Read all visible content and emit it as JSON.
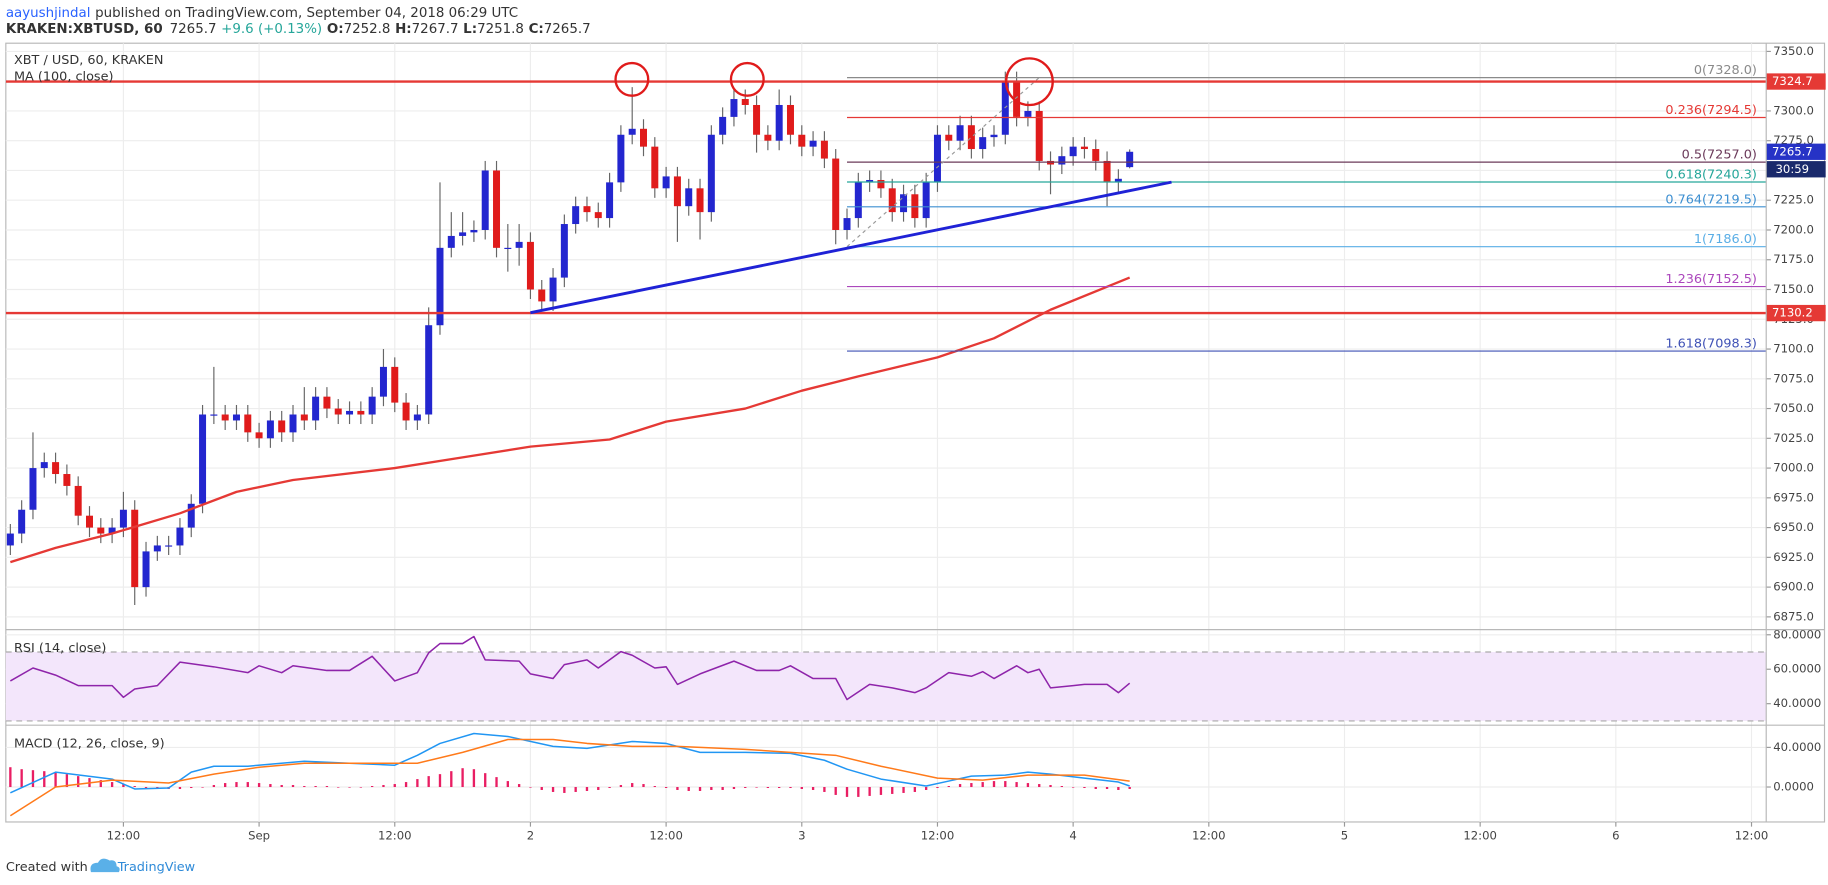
{
  "header": {
    "author": "aayushjindal",
    "published": "published on TradingView.com, September 04, 2018 06:29 UTC",
    "symbol": "KRAKEN:XBTUSD, 60",
    "change": "+9.6 (+0.13%)",
    "ohlc_labels": [
      "O:",
      "H:",
      "L:",
      "C:"
    ]
  },
  "footer": {
    "created": "Created with",
    "brand": "TradingView"
  },
  "chart_data": [
    {
      "type": "candlestick",
      "title": "XBT / USD, 60, KRAKEN",
      "up_color": "#2326cf",
      "down_color": "#e01b1b",
      "wick_color": "#666666",
      "grid": true,
      "x": [
        -22,
        -21,
        -20,
        -19,
        -18,
        -17,
        -16,
        -15,
        -14,
        -13,
        -12,
        -11,
        -10,
        -9,
        -8,
        -7,
        -6,
        -5,
        -4,
        -3,
        -2,
        -1,
        0,
        1,
        2,
        3,
        4,
        5,
        6,
        7,
        8,
        9,
        10,
        11,
        12,
        13,
        14,
        15,
        16,
        17,
        18,
        19,
        20,
        21,
        22,
        23,
        24,
        25,
        26,
        27,
        28,
        29,
        30,
        31,
        32,
        33,
        34,
        35,
        36,
        37,
        38,
        39,
        40,
        41,
        42,
        43,
        44,
        45,
        46,
        47,
        48,
        49,
        50,
        51,
        52,
        53,
        54,
        55,
        56,
        57,
        58,
        59,
        60,
        61,
        62,
        63,
        64,
        65,
        66,
        67,
        68,
        69,
        70,
        71,
        72,
        73,
        74,
        75,
        76,
        77
      ],
      "open": [
        6935,
        6945,
        6965,
        7000,
        7005,
        6995,
        6985,
        6960,
        6950,
        6945,
        6950,
        6965,
        6900,
        6930,
        6935,
        6935,
        6950,
        6970,
        7045,
        7045,
        7040,
        7045,
        7030,
        7025,
        7040,
        7030,
        7045,
        7040,
        7060,
        7050,
        7045,
        7048,
        7045,
        7060,
        7085,
        7055,
        7040,
        7045,
        7120,
        7185,
        7195,
        7198,
        7200,
        7250,
        7185,
        7185,
        7190,
        7150,
        7140,
        7160,
        7205,
        7220,
        7215,
        7210,
        7240,
        7280,
        7285,
        7270,
        7235,
        7245,
        7220,
        7235,
        7215,
        7280,
        7295,
        7310,
        7305,
        7280,
        7275,
        7305,
        7280,
        7270,
        7275,
        7260,
        7200,
        7210,
        7240,
        7242,
        7235,
        7215,
        7230,
        7210,
        7240,
        7280,
        7275,
        7288,
        7268,
        7278,
        7280,
        7325,
        7295,
        7300,
        7258,
        7255,
        7262,
        7270,
        7268,
        7258,
        7240,
        7252.8
      ],
      "high": [
        6953,
        6973,
        7030,
        7013,
        7013,
        7003,
        6993,
        6968,
        6958,
        6958,
        6980,
        6973,
        6938,
        6943,
        6943,
        6958,
        6978,
        7053,
        7085,
        7053,
        7053,
        7053,
        7038,
        7048,
        7048,
        7053,
        7068,
        7068,
        7068,
        7058,
        7056,
        7056,
        7068,
        7100,
        7093,
        7063,
        7053,
        7135,
        7240,
        7215,
        7215,
        7208,
        7258,
        7258,
        7205,
        7205,
        7198,
        7158,
        7168,
        7213,
        7228,
        7228,
        7223,
        7248,
        7288,
        7320,
        7293,
        7278,
        7253,
        7253,
        7243,
        7243,
        7288,
        7303,
        7318,
        7318,
        7313,
        7288,
        7318,
        7313,
        7288,
        7283,
        7283,
        7268,
        7218,
        7248,
        7250,
        7250,
        7243,
        7238,
        7238,
        7248,
        7288,
        7288,
        7296,
        7296,
        7286,
        7288,
        7333,
        7333,
        7308,
        7308,
        7266,
        7270,
        7278,
        7278,
        7276,
        7266,
        7251,
        7267.7
      ],
      "low": [
        6927,
        6937,
        6957,
        6992,
        6987,
        6977,
        6952,
        6942,
        6937,
        6937,
        6942,
        6885,
        6892,
        6922,
        6927,
        6927,
        6942,
        6962,
        7037,
        7032,
        7032,
        7022,
        7017,
        7017,
        7022,
        7022,
        7032,
        7032,
        7042,
        7037,
        7037,
        7037,
        7037,
        7052,
        7047,
        7032,
        7032,
        7037,
        7112,
        7177,
        7187,
        7190,
        7192,
        7177,
        7165,
        7170,
        7142,
        7132,
        7132,
        7152,
        7197,
        7207,
        7202,
        7202,
        7232,
        7272,
        7262,
        7227,
        7227,
        7190,
        7212,
        7192,
        7207,
        7272,
        7287,
        7297,
        7265,
        7267,
        7267,
        7272,
        7262,
        7262,
        7252,
        7188,
        7192,
        7202,
        7232,
        7227,
        7207,
        7207,
        7202,
        7202,
        7232,
        7267,
        7267,
        7260,
        7260,
        7270,
        7272,
        7287,
        7287,
        7250,
        7230,
        7247,
        7254,
        7260,
        7250,
        7220,
        7232,
        7251.8
      ],
      "close": [
        6945,
        6965,
        7000,
        7005,
        6995,
        6985,
        6960,
        6950,
        6945,
        6950,
        6965,
        6900,
        6930,
        6935,
        6935,
        6950,
        6970,
        7045,
        7045,
        7040,
        7045,
        7030,
        7025,
        7040,
        7030,
        7045,
        7040,
        7060,
        7050,
        7045,
        7048,
        7045,
        7060,
        7085,
        7055,
        7040,
        7045,
        7120,
        7185,
        7195,
        7198,
        7200,
        7250,
        7185,
        7185,
        7190,
        7150,
        7140,
        7160,
        7205,
        7220,
        7215,
        7210,
        7240,
        7280,
        7285,
        7270,
        7235,
        7245,
        7220,
        7235,
        7215,
        7280,
        7295,
        7310,
        7305,
        7280,
        7275,
        7305,
        7280,
        7270,
        7275,
        7260,
        7200,
        7210,
        7240,
        7242,
        7235,
        7215,
        7230,
        7210,
        7240,
        7280,
        7275,
        7288,
        7268,
        7278,
        7280,
        7325,
        7295,
        7300,
        7258,
        7255,
        7262,
        7270,
        7268,
        7258,
        7240,
        7243,
        7265.7
      ],
      "series": [
        {
          "name": "MA (100, close)",
          "color": "#e53935",
          "x": [
            -22,
            -18,
            -13,
            -7,
            -2,
            3,
            12,
            18,
            24,
            31,
            36,
            43,
            48,
            53,
            60,
            65,
            70,
            77
          ],
          "values": [
            6921,
            6933,
            6945,
            6962,
            6980,
            6990,
            7000,
            7009,
            7018,
            7024,
            7039,
            7050,
            7065,
            7077,
            7093,
            7109,
            7133,
            7160
          ]
        }
      ],
      "hlines": [
        7324.7,
        7130.2
      ],
      "hline_color": "#e53935",
      "fib": {
        "x": [
          52,
          69
        ],
        "levels": [
          {
            "value": 7328.0,
            "label": "0(7328.0)",
            "color": "#8a8a8a"
          },
          {
            "value": 7294.5,
            "label": "0.236(7294.5)",
            "color": "#e53935"
          },
          {
            "value": 7257.0,
            "label": "0.5(7257.0)",
            "color": "#6b3a5a"
          },
          {
            "value": 7240.3,
            "label": "0.618(7240.3)",
            "color": "#26a69a"
          },
          {
            "value": 7219.5,
            "label": "0.764(7219.5)",
            "color": "#3d8fd1"
          },
          {
            "value": 7186.0,
            "label": "1(7186.0)",
            "color": "#5aaee6"
          },
          {
            "value": 7152.5,
            "label": "1.236(7152.5)",
            "color": "#ab47bc"
          },
          {
            "value": 7098.3,
            "label": "1.618(7098.3)",
            "color": "#3f51b5"
          }
        ]
      },
      "trendline": {
        "x": [
          24,
          80.7
        ],
        "y": [
          7130.5,
          7240.2
        ],
        "color": "#1f22d6"
      },
      "last_color": "#2633c6",
      "countdown": "30:59",
      "countdown_color": "#1a2a6c",
      "xlim": [
        -22.4,
        133.3
      ],
      "xticks": [
        {
          "value": -12,
          "label": "12:00"
        },
        {
          "value": 0,
          "label": "Sep"
        },
        {
          "value": 12,
          "label": "12:00"
        },
        {
          "value": 24,
          "label": "2"
        },
        {
          "value": 36,
          "label": "12:00"
        },
        {
          "value": 48,
          "label": "3"
        },
        {
          "value": 60,
          "label": "12:00"
        },
        {
          "value": 72,
          "label": "4"
        },
        {
          "value": 84,
          "label": "12:00"
        },
        {
          "value": 96,
          "label": "5"
        },
        {
          "value": 108,
          "label": "12:00"
        },
        {
          "value": 120,
          "label": "6"
        },
        {
          "value": 132,
          "label": "12:00"
        }
      ],
      "ylim": [
        6864.3,
        7356.9
      ],
      "yticks": [
        {
          "value": 6875,
          "label": "6875.0"
        },
        {
          "value": 6900,
          "label": "6900.0"
        },
        {
          "value": 6925,
          "label": "6925.0"
        },
        {
          "value": 6950,
          "label": "6950.0"
        },
        {
          "value": 6975,
          "label": "6975.0"
        },
        {
          "value": 7000,
          "label": "7000.0"
        },
        {
          "value": 7025,
          "label": "7025.0"
        },
        {
          "value": 7050,
          "label": "7050.0"
        },
        {
          "value": 7075,
          "label": "7075.0"
        },
        {
          "value": 7100,
          "label": "7100.0"
        },
        {
          "value": 7125,
          "label": "7125.0"
        },
        {
          "value": 7150,
          "label": "7150.0"
        },
        {
          "value": 7175,
          "label": "7175.0"
        },
        {
          "value": 7200,
          "label": "7200.0"
        },
        {
          "value": 7225,
          "label": "7225.0"
        },
        {
          "value": 7250,
          "label": "7250.0"
        },
        {
          "value": 7275,
          "label": "7275.0"
        },
        {
          "value": 7300,
          "label": "7300.0"
        },
        {
          "value": 7325,
          "label": "7325.0"
        },
        {
          "value": 7350,
          "label": "7350.0"
        }
      ]
    },
    {
      "type": "line",
      "title": "RSI (14, close)",
      "grid": true,
      "band": [
        30,
        70
      ],
      "band_color": "#f3e6fb",
      "series": [
        {
          "color": "#8e24aa",
          "x": [
            -22,
            -20,
            -18,
            -16,
            -13,
            -12,
            -11,
            -9,
            -7,
            -4,
            -1,
            0,
            2,
            3,
            6,
            8,
            10,
            12,
            14,
            15,
            16,
            18,
            19,
            20,
            23,
            24,
            26,
            27,
            29,
            30,
            32,
            33,
            35,
            36,
            37,
            39,
            42,
            44,
            46,
            47,
            49,
            51,
            52,
            54,
            56,
            58,
            59,
            61,
            63,
            64,
            65,
            67,
            68,
            69,
            70,
            72,
            73,
            75,
            76,
            77
          ],
          "values": [
            53.2,
            60.7,
            56.6,
            50.5,
            50.5,
            43.7,
            48.5,
            50.5,
            64.1,
            61.4,
            58.0,
            62.0,
            58.0,
            62.0,
            59.3,
            59.3,
            67.5,
            53.2,
            58.0,
            69.5,
            74.9,
            74.9,
            79.0,
            65.4,
            64.7,
            57.3,
            54.6,
            62.7,
            65.4,
            60.7,
            70.2,
            68.1,
            60.7,
            61.4,
            51.2,
            57.3,
            64.7,
            59.3,
            59.3,
            62.0,
            54.6,
            54.6,
            42.4,
            51.2,
            49.2,
            46.4,
            49.2,
            58.0,
            55.9,
            58.6,
            54.6,
            62.0,
            58.0,
            60.0,
            49.2,
            50.5,
            51.2,
            51.2,
            46.4,
            51.9
          ]
        }
      ],
      "ylim": [
        27.5,
        83.0
      ],
      "yticks": [
        {
          "value": 40,
          "label": "40.0000"
        },
        {
          "value": 60,
          "label": "60.0000"
        },
        {
          "value": 80,
          "label": "80.0000"
        }
      ]
    },
    {
      "type": "line",
      "title": "MACD (12, 26, close, 9)",
      "grid": true,
      "series": [
        {
          "kind": "histogram",
          "color": "#e91e63",
          "values": [
            20,
            18,
            17,
            16,
            15,
            13,
            11,
            9,
            7,
            5,
            3,
            1,
            -1,
            -2,
            -2,
            -2,
            -1,
            0,
            2,
            4,
            5,
            5,
            4,
            3,
            2,
            2,
            1,
            1,
            1,
            0,
            0,
            0,
            1,
            2,
            3,
            5,
            8,
            11,
            13,
            16,
            19,
            18,
            14,
            10,
            6,
            3,
            0,
            -3,
            -5,
            -6,
            -5,
            -4,
            -3,
            -1,
            2,
            4,
            3,
            1,
            -1,
            -3,
            -4,
            -4,
            -3,
            -3,
            -2,
            -1,
            0,
            -1,
            -1,
            -1,
            -2,
            -3,
            -5,
            -8,
            -10,
            -10,
            -9,
            -8,
            -7,
            -6,
            -5,
            -3,
            -1,
            1,
            3,
            4,
            5,
            6,
            6,
            5,
            4,
            3,
            2,
            1,
            0,
            -1,
            -2,
            -2,
            -3,
            -2
          ]
        },
        {
          "color": "#2196f3",
          "x": [
            -22,
            -18,
            -13,
            -11,
            -8,
            -6,
            -4,
            -1,
            4,
            8,
            12,
            14,
            16,
            19,
            22,
            26,
            29,
            33,
            36,
            39,
            43,
            47,
            50,
            52,
            55,
            59,
            61,
            63,
            66,
            68,
            70,
            73,
            76,
            77
          ],
          "values": [
            -5.9,
            15,
            8,
            -2,
            -1,
            15,
            21,
            21,
            26,
            24,
            22,
            32,
            44,
            54,
            51,
            41,
            39,
            46,
            44,
            35,
            35,
            34,
            27,
            18,
            8,
            1,
            6,
            11,
            12,
            15,
            13,
            9,
            5,
            1
          ]
        },
        {
          "color": "#ff7a1a",
          "x": [
            -22,
            -18,
            -13,
            -8,
            -4,
            0,
            4,
            10,
            14,
            18,
            22,
            26,
            29,
            33,
            37,
            43,
            47,
            51,
            55,
            60,
            64,
            68,
            73,
            77
          ],
          "values": [
            -29,
            0,
            7,
            4,
            13,
            20,
            24,
            24,
            24,
            35,
            48,
            48,
            44,
            41,
            41,
            38,
            35,
            32,
            21,
            9,
            7,
            12,
            12,
            6
          ]
        }
      ],
      "ylim": [
        -35.3,
        62.4
      ],
      "yticks": [
        {
          "value": 0,
          "label": "0.0000"
        },
        {
          "value": 40,
          "label": "40.0000"
        }
      ]
    }
  ]
}
